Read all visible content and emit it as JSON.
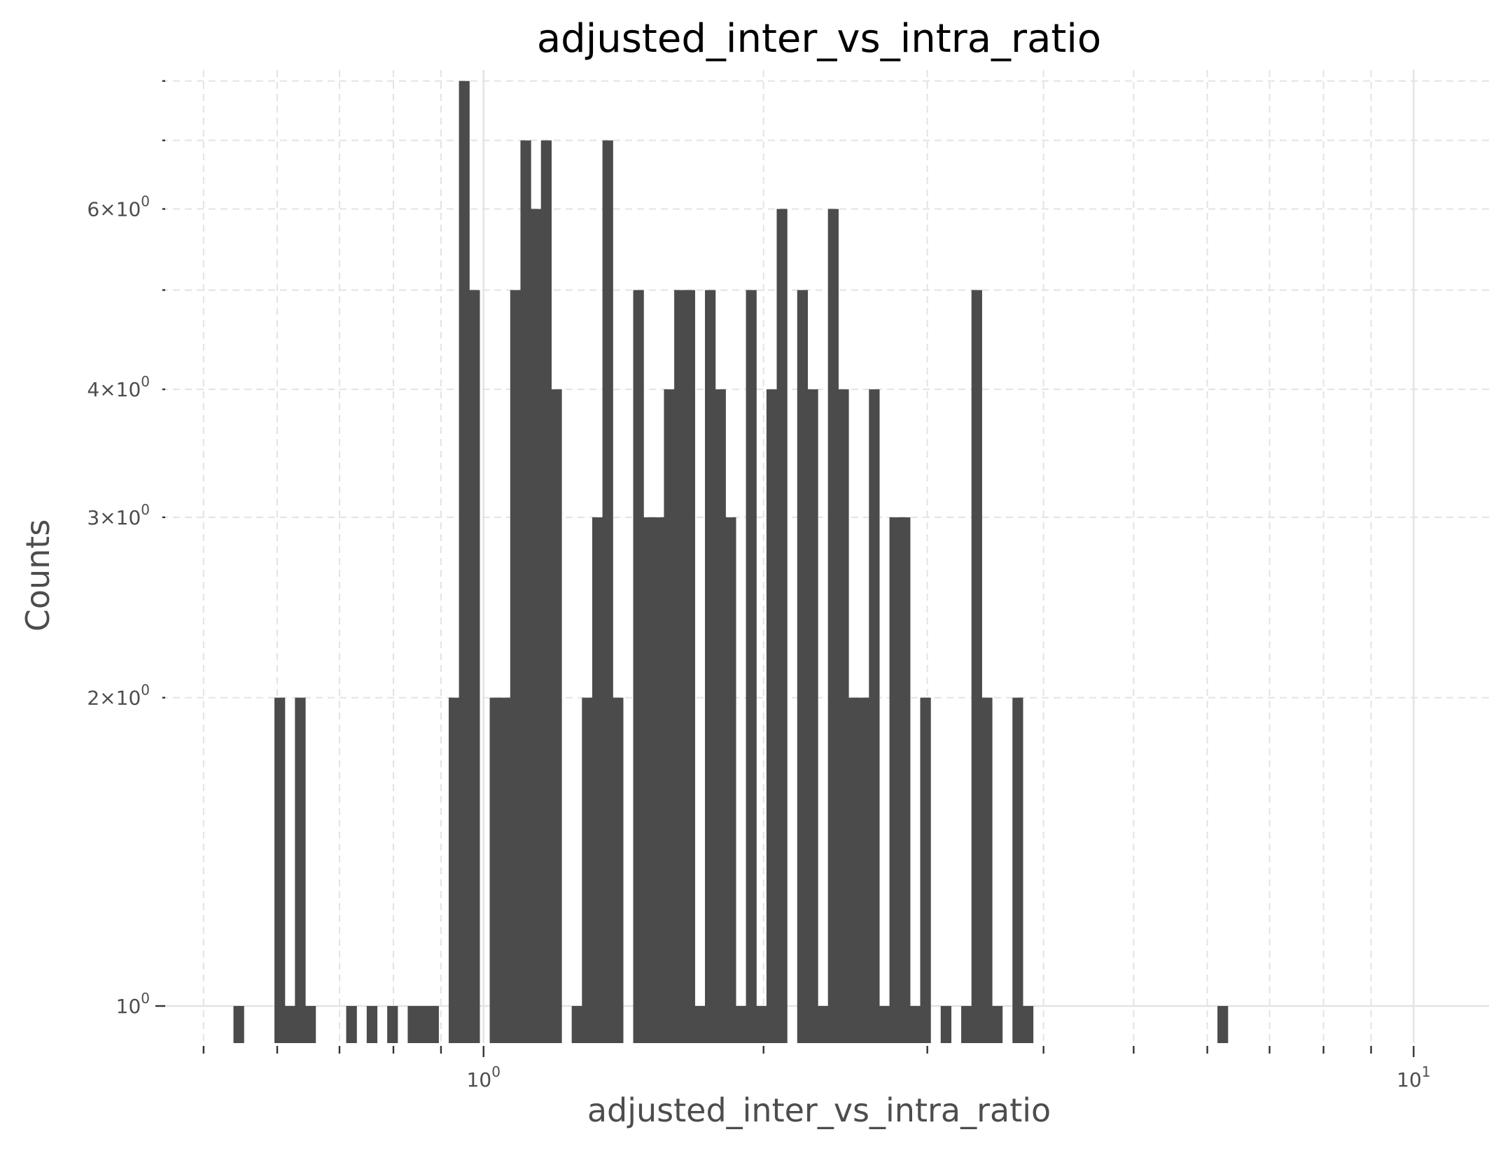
{
  "chart_data": {
    "type": "bar",
    "title": "adjusted_inter_vs_intra_ratio",
    "xlabel": "adjusted_inter_vs_intra_ratio",
    "ylabel": "Counts",
    "x_scale": "log",
    "y_scale": "log",
    "xlim": [
      0.45,
      11.5
    ],
    "ylim": [
      0.92,
      8.2
    ],
    "grid": true,
    "x_ticks": [
      {
        "value": 1,
        "base": "10",
        "exp": "0"
      },
      {
        "value": 10,
        "base": "10",
        "exp": "1"
      }
    ],
    "y_ticks": [
      {
        "value": 1,
        "mant": "",
        "base": "10",
        "exp": "0"
      },
      {
        "value": 2,
        "mant": "2×",
        "base": "10",
        "exp": "0"
      },
      {
        "value": 3,
        "mant": "3×",
        "base": "10",
        "exp": "0"
      },
      {
        "value": 4,
        "mant": "4×",
        "base": "10",
        "exp": "0"
      },
      {
        "value": 6,
        "mant": "6×",
        "base": "10",
        "exp": "0"
      }
    ],
    "bin_start": 0.5384,
    "bin_ratio": 1.0257,
    "counts": [
      1,
      0,
      0,
      0,
      2,
      1,
      2,
      1,
      0,
      0,
      0,
      1,
      0,
      1,
      0,
      1,
      0,
      1,
      1,
      1,
      0,
      2,
      8,
      5,
      0,
      2,
      2,
      5,
      7,
      6,
      7,
      4,
      0,
      1,
      2,
      3,
      7,
      2,
      0,
      5,
      3,
      3,
      4,
      5,
      5,
      1,
      5,
      4,
      3,
      1,
      5,
      1,
      4,
      6,
      0,
      5,
      4,
      1,
      6,
      4,
      2,
      2,
      4,
      1,
      3,
      3,
      1,
      2,
      0,
      1,
      0,
      1,
      5,
      2,
      1,
      0,
      2,
      1,
      0,
      0,
      0,
      0,
      0,
      0,
      0,
      0,
      0,
      0,
      0,
      0,
      0,
      0,
      0,
      0,
      0,
      0,
      1
    ]
  }
}
